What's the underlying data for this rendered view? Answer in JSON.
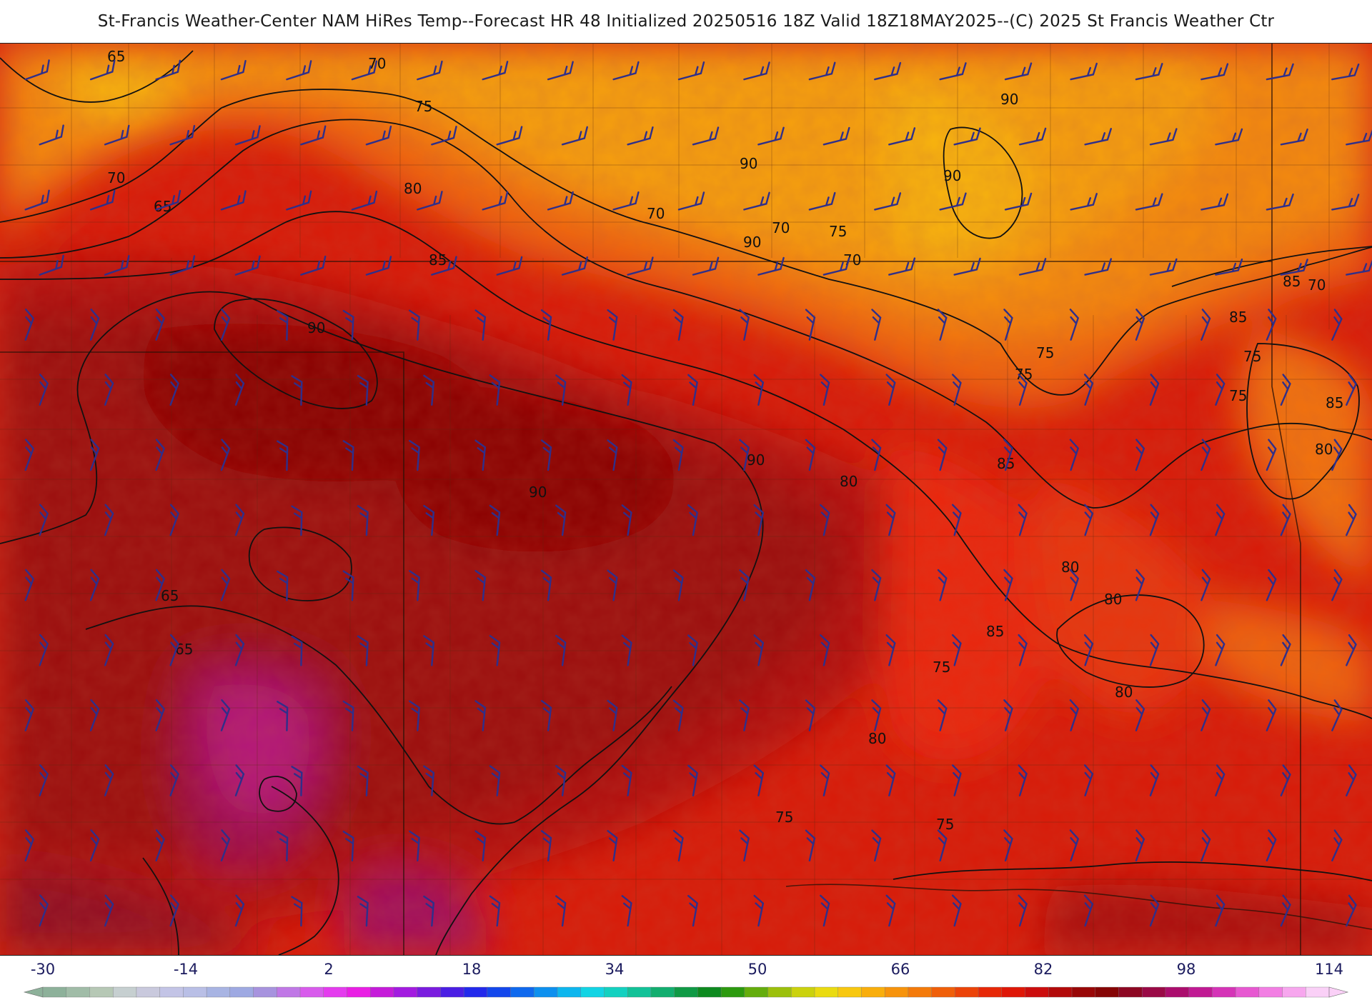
{
  "title": "St-Francis Weather-Center NAM HiRes Temp--Forecast HR 48 Initialized 20250516 18Z Valid 18Z18MAY2025--(C) 2025 St Francis Weather Ctr",
  "map": {
    "variable": "2 m temperature (F) with wind barbs",
    "contour_labels": [
      "65",
      "70",
      "75",
      "80",
      "85",
      "90",
      "90",
      "90",
      "90",
      "90",
      "90",
      "90",
      "85",
      "85",
      "85",
      "85",
      "85",
      "80",
      "80",
      "80",
      "80",
      "80",
      "80",
      "75",
      "75",
      "75",
      "75",
      "75",
      "75",
      "75",
      "75",
      "70",
      "70",
      "70",
      "70",
      "70",
      "65",
      "65",
      "65"
    ]
  },
  "colorbar": {
    "ticks": [
      "-30",
      "-14",
      "2",
      "18",
      "34",
      "50",
      "66",
      "82",
      "98",
      "114"
    ],
    "colors": [
      "#8db19a",
      "#a0bca7",
      "#b6c8b5",
      "#c6cfd0",
      "#c9c9dd",
      "#c3c4e6",
      "#b9bfe6",
      "#a8b4e3",
      "#9ea9e2",
      "#a793de",
      "#c078e6",
      "#d85bec",
      "#e43cee",
      "#e91fe4",
      "#c51bd9",
      "#a31be0",
      "#7a1cdf",
      "#4a1ee4",
      "#2229ec",
      "#1347ec",
      "#0f69ee",
      "#0d90ef",
      "#0db6ee",
      "#12d4e4",
      "#13d1c0",
      "#12c298",
      "#12ae6f",
      "#0f9a45",
      "#0d8a1f",
      "#2c9a0e",
      "#64ad0c",
      "#9cc00b",
      "#cbd20d",
      "#eadb10",
      "#f8c80f",
      "#f9ae0c",
      "#f7930b",
      "#f47a0a",
      "#f05f09",
      "#ec4308",
      "#e72807",
      "#df1707",
      "#cc0d0d",
      "#b30a0a",
      "#990707",
      "#860505",
      "#8d0722",
      "#9a0a46",
      "#ab0d6d",
      "#c01a93",
      "#d534b7",
      "#e758d1",
      "#f27ee3",
      "#f7a6ee",
      "#fad0f7"
    ]
  }
}
